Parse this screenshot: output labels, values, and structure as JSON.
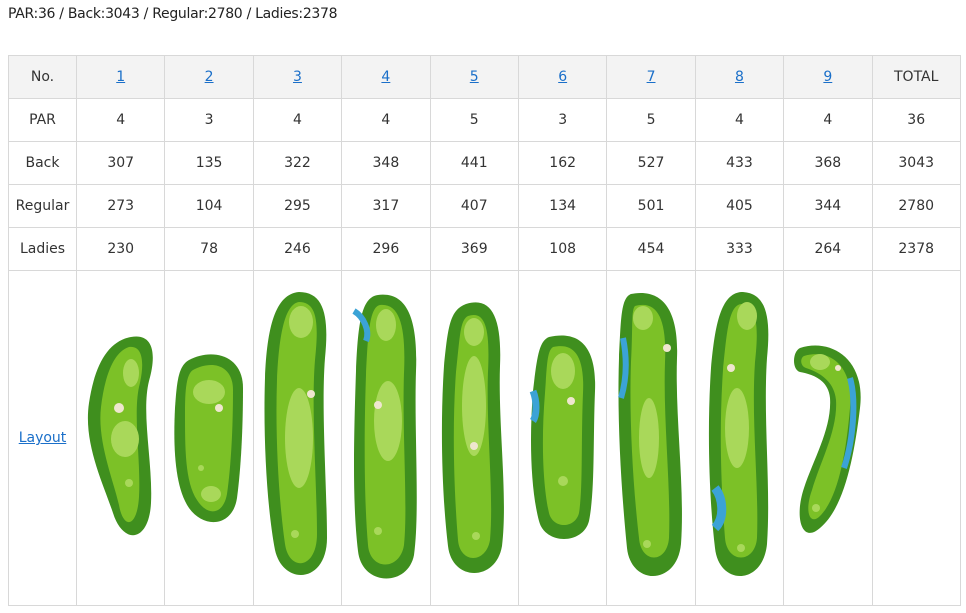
{
  "summary": "PAR:36 / Back:3043 / Regular:2780 / Ladies:2378",
  "table": {
    "header_label": "No.",
    "holes": [
      "1",
      "2",
      "3",
      "4",
      "5",
      "6",
      "7",
      "8",
      "9"
    ],
    "total_label": "TOTAL",
    "rows": [
      {
        "label": "PAR",
        "values": [
          "4",
          "3",
          "4",
          "4",
          "5",
          "3",
          "5",
          "4",
          "4"
        ],
        "total": "36"
      },
      {
        "label": "Back",
        "values": [
          "307",
          "135",
          "322",
          "348",
          "441",
          "162",
          "527",
          "433",
          "368"
        ],
        "total": "3043"
      },
      {
        "label": "Regular",
        "values": [
          "273",
          "104",
          "295",
          "317",
          "407",
          "134",
          "501",
          "405",
          "344"
        ],
        "total": "2780"
      },
      {
        "label": "Ladies",
        "values": [
          "230",
          "78",
          "246",
          "296",
          "369",
          "108",
          "454",
          "333",
          "264"
        ],
        "total": "2378"
      }
    ],
    "layout_label": "Layout"
  },
  "colors": {
    "fairway": "#7cc127",
    "rough": "#3f8f1e",
    "green": "#a9d85a",
    "water": "#3ba3d6",
    "bunker": "#efe6cf",
    "link": "#1a6fc9"
  }
}
